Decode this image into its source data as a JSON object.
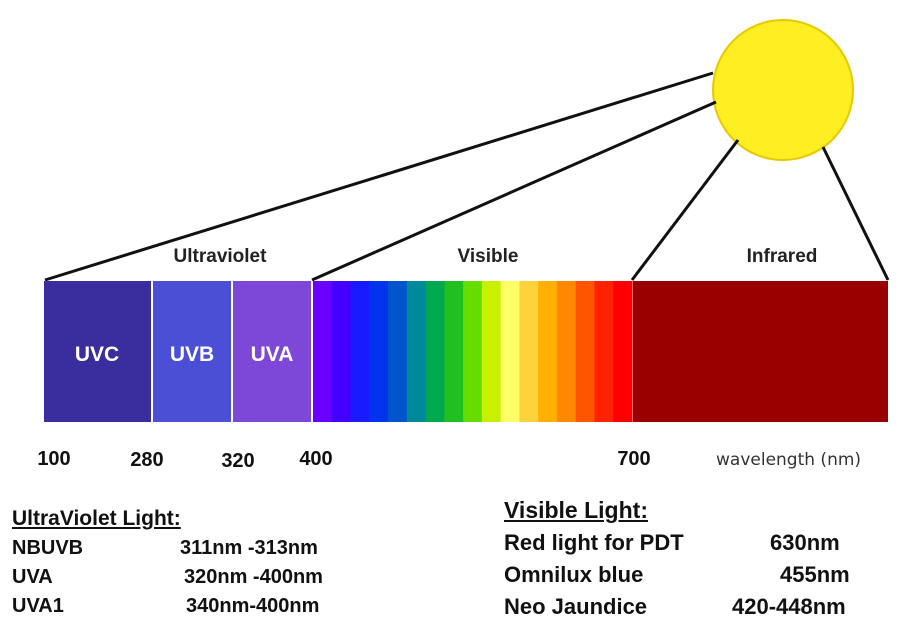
{
  "bands": {
    "ultraviolet": "Ultraviolet",
    "visible": "Visible",
    "infrared": "Infrared"
  },
  "segments": {
    "uvc": "UVC",
    "uvb": "UVB",
    "uva": "UVA"
  },
  "ticks": {
    "t100": "100",
    "t280": "280",
    "t320": "320",
    "t400": "400",
    "t700": "700"
  },
  "axis_unit": "wavelength (nm)",
  "colors": {
    "sun": "#ffee22",
    "uvc": "#3a2d9e",
    "uvb": "#4a4fd6",
    "uva": "#7d48d8",
    "infrared": "#990000",
    "spectrum": [
      "#6a00ff",
      "#4400ff",
      "#1a1aff",
      "#0033ee",
      "#0055cc",
      "#008a99",
      "#00a850",
      "#20c020",
      "#66dd00",
      "#c8f000",
      "#ffff66",
      "#ffd23c",
      "#ffb000",
      "#ff8800",
      "#ff5500",
      "#ff2200",
      "#ff0000"
    ]
  },
  "uv_info": {
    "heading": "UltraViolet Light:",
    "rows": [
      {
        "name": "NBUVB",
        "range": "311nm -313nm"
      },
      {
        "name": "UVA",
        "range": "320nm -400nm"
      },
      {
        "name": "UVA1",
        "range": "340nm-400nm"
      }
    ]
  },
  "visible_info": {
    "heading": "Visible Light:",
    "rows": [
      {
        "name": "Red light for PDT",
        "range": "630nm"
      },
      {
        "name": "Omnilux blue",
        "range": "455nm"
      },
      {
        "name": "Neo Jaundice",
        "range": "420-448nm"
      }
    ]
  }
}
